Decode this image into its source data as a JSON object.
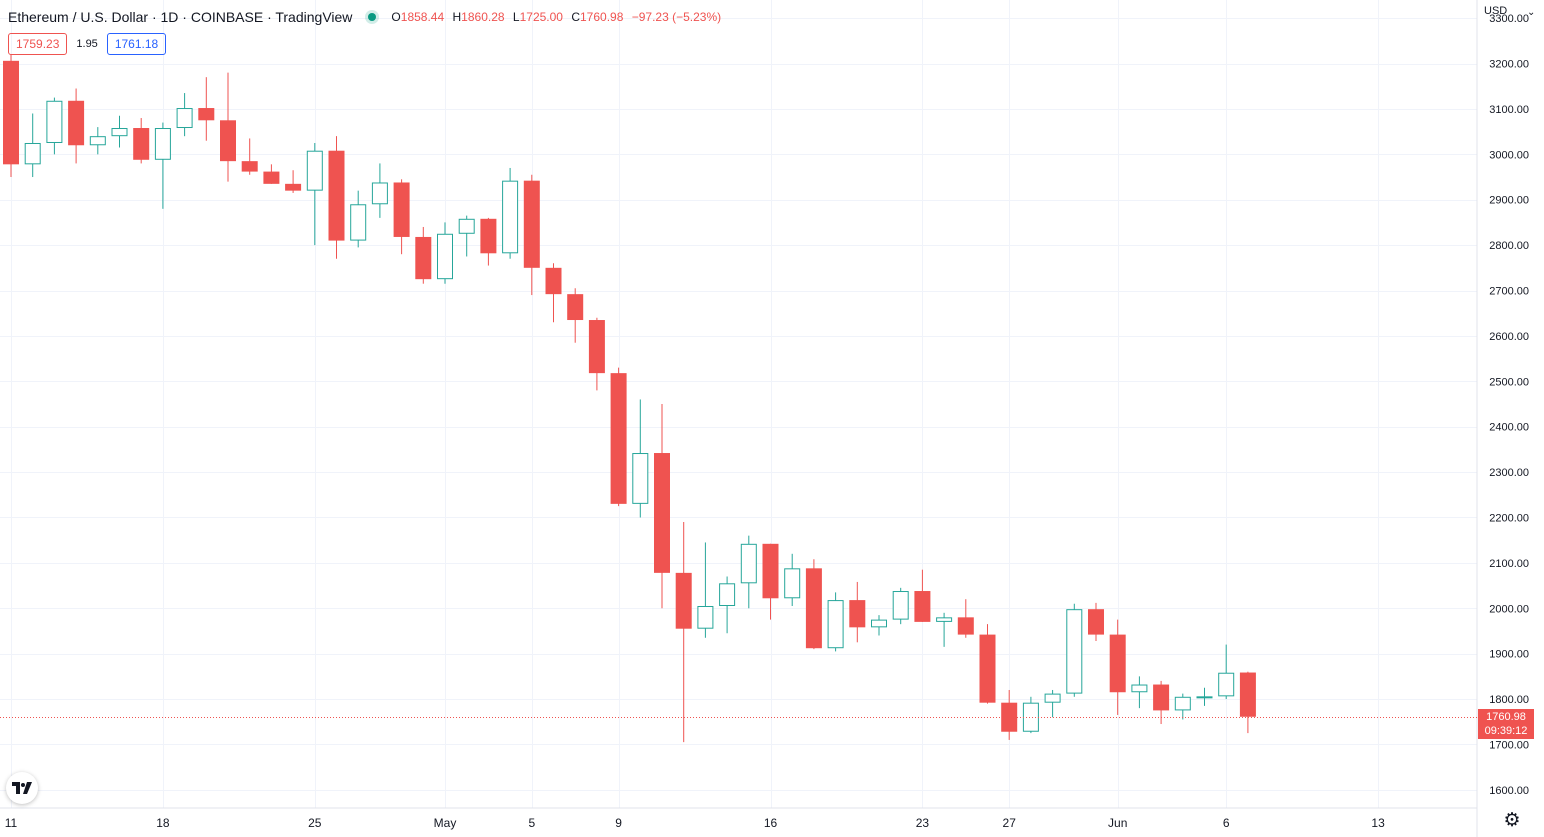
{
  "header": {
    "symbol_title": "Ethereum / U.S. Dollar · 1D · COINBASE · TradingView",
    "open_label": "O",
    "open": "1858.44",
    "high_label": "H",
    "high": "1860.28",
    "low_label": "L",
    "low": "1725.00",
    "close_label": "C",
    "close": "1760.98",
    "change": "−97.23 (−5.23%)"
  },
  "quote": {
    "sell": "1759.23",
    "spread": "1.95",
    "buy": "1761.18"
  },
  "currency": "USD",
  "last_price": {
    "value": "1760.98",
    "countdown": "09:39:12"
  },
  "colors": {
    "up": "#26a69a",
    "down": "#ef5350",
    "grid": "#f0f3fa",
    "axis_text": "#131722"
  },
  "icons": {
    "logo": "tradingview-logo-icon",
    "settings": "gear-icon",
    "currency_menu": "chevron-down-icon"
  },
  "chart_data": {
    "type": "candlestick",
    "ylim": [
      1560,
      3340
    ],
    "y_ticks": [
      1600,
      1700,
      1800,
      1900,
      2000,
      2100,
      2200,
      2300,
      2400,
      2500,
      2600,
      2700,
      2800,
      2900,
      3000,
      3100,
      3200,
      3300
    ],
    "y_tick_labels": [
      "1600.00",
      "1700.00",
      "1800.00",
      "1900.00",
      "2000.00",
      "2100.00",
      "2200.00",
      "2300.00",
      "2400.00",
      "2500.00",
      "2600.00",
      "2700.00",
      "2800.00",
      "2900.00",
      "3000.00",
      "3100.00",
      "3200.00",
      "3300.00"
    ],
    "x_ticks": [
      {
        "date": "2022-04-11",
        "label": "11"
      },
      {
        "date": "2022-04-18",
        "label": "18"
      },
      {
        "date": "2022-04-25",
        "label": "25"
      },
      {
        "date": "2022-05-01",
        "label": "May"
      },
      {
        "date": "2022-05-05",
        "label": "5"
      },
      {
        "date": "2022-05-09",
        "label": "9"
      },
      {
        "date": "2022-05-16",
        "label": "16"
      },
      {
        "date": "2022-05-23",
        "label": "23"
      },
      {
        "date": "2022-05-27",
        "label": "27"
      },
      {
        "date": "2022-06-01",
        "label": "Jun"
      },
      {
        "date": "2022-06-06",
        "label": "6"
      },
      {
        "date": "2022-06-13",
        "label": "13"
      }
    ],
    "x_range": [
      "2022-04-11",
      "2022-06-18"
    ],
    "last_close_line": 1760.98,
    "candles": [
      {
        "date": "2022-04-11",
        "open": 3206,
        "high": 3220,
        "low": 2950,
        "close": 2978
      },
      {
        "date": "2022-04-12",
        "open": 2978,
        "high": 3090,
        "low": 2950,
        "close": 3025
      },
      {
        "date": "2022-04-13",
        "open": 3025,
        "high": 3125,
        "low": 3000,
        "close": 3118
      },
      {
        "date": "2022-04-14",
        "open": 3118,
        "high": 3145,
        "low": 2980,
        "close": 3020
      },
      {
        "date": "2022-04-15",
        "open": 3020,
        "high": 3060,
        "low": 3000,
        "close": 3040
      },
      {
        "date": "2022-04-16",
        "open": 3040,
        "high": 3085,
        "low": 3015,
        "close": 3058
      },
      {
        "date": "2022-04-17",
        "open": 3058,
        "high": 3080,
        "low": 2980,
        "close": 2988
      },
      {
        "date": "2022-04-18",
        "open": 2988,
        "high": 3070,
        "low": 2880,
        "close": 3058
      },
      {
        "date": "2022-04-19",
        "open": 3058,
        "high": 3135,
        "low": 3040,
        "close": 3102
      },
      {
        "date": "2022-04-20",
        "open": 3102,
        "high": 3170,
        "low": 3030,
        "close": 3075
      },
      {
        "date": "2022-04-21",
        "open": 3075,
        "high": 3180,
        "low": 2940,
        "close": 2985
      },
      {
        "date": "2022-04-22",
        "open": 2985,
        "high": 3035,
        "low": 2955,
        "close": 2962
      },
      {
        "date": "2022-04-23",
        "open": 2962,
        "high": 2978,
        "low": 2935,
        "close": 2935
      },
      {
        "date": "2022-04-24",
        "open": 2935,
        "high": 2965,
        "low": 2915,
        "close": 2920
      },
      {
        "date": "2022-04-25",
        "open": 2920,
        "high": 3025,
        "low": 2800,
        "close": 3008
      },
      {
        "date": "2022-04-26",
        "open": 3008,
        "high": 3040,
        "low": 2770,
        "close": 2810
      },
      {
        "date": "2022-04-27",
        "open": 2810,
        "high": 2920,
        "low": 2795,
        "close": 2890
      },
      {
        "date": "2022-04-28",
        "open": 2890,
        "high": 2980,
        "low": 2860,
        "close": 2938
      },
      {
        "date": "2022-04-29",
        "open": 2938,
        "high": 2945,
        "low": 2780,
        "close": 2818
      },
      {
        "date": "2022-04-30",
        "open": 2818,
        "high": 2840,
        "low": 2715,
        "close": 2725
      },
      {
        "date": "2022-05-01",
        "open": 2725,
        "high": 2850,
        "low": 2715,
        "close": 2825
      },
      {
        "date": "2022-05-02",
        "open": 2825,
        "high": 2865,
        "low": 2775,
        "close": 2858
      },
      {
        "date": "2022-05-03",
        "open": 2858,
        "high": 2860,
        "low": 2755,
        "close": 2782
      },
      {
        "date": "2022-05-04",
        "open": 2782,
        "high": 2970,
        "low": 2770,
        "close": 2942
      },
      {
        "date": "2022-05-05",
        "open": 2942,
        "high": 2955,
        "low": 2690,
        "close": 2750
      },
      {
        "date": "2022-05-06",
        "open": 2750,
        "high": 2760,
        "low": 2630,
        "close": 2692
      },
      {
        "date": "2022-05-07",
        "open": 2692,
        "high": 2705,
        "low": 2585,
        "close": 2635
      },
      {
        "date": "2022-05-08",
        "open": 2635,
        "high": 2640,
        "low": 2480,
        "close": 2518
      },
      {
        "date": "2022-05-09",
        "open": 2518,
        "high": 2530,
        "low": 2225,
        "close": 2230
      },
      {
        "date": "2022-05-10",
        "open": 2230,
        "high": 2460,
        "low": 2200,
        "close": 2342
      },
      {
        "date": "2022-05-11",
        "open": 2342,
        "high": 2450,
        "low": 2000,
        "close": 2078
      },
      {
        "date": "2022-05-12",
        "open": 2078,
        "high": 2190,
        "low": 1705,
        "close": 1955
      },
      {
        "date": "2022-05-13",
        "open": 1955,
        "high": 2145,
        "low": 1935,
        "close": 2005
      },
      {
        "date": "2022-05-14",
        "open": 2005,
        "high": 2070,
        "low": 1945,
        "close": 2055
      },
      {
        "date": "2022-05-15",
        "open": 2055,
        "high": 2160,
        "low": 2000,
        "close": 2142
      },
      {
        "date": "2022-05-16",
        "open": 2142,
        "high": 2142,
        "low": 1975,
        "close": 2022
      },
      {
        "date": "2022-05-17",
        "open": 2022,
        "high": 2120,
        "low": 2005,
        "close": 2088
      },
      {
        "date": "2022-05-18",
        "open": 2088,
        "high": 2108,
        "low": 1910,
        "close": 1912
      },
      {
        "date": "2022-05-19",
        "open": 1912,
        "high": 2035,
        "low": 1905,
        "close": 2018
      },
      {
        "date": "2022-05-20",
        "open": 2018,
        "high": 2058,
        "low": 1925,
        "close": 1958
      },
      {
        "date": "2022-05-21",
        "open": 1958,
        "high": 1985,
        "low": 1940,
        "close": 1975
      },
      {
        "date": "2022-05-22",
        "open": 1975,
        "high": 2045,
        "low": 1965,
        "close": 2038
      },
      {
        "date": "2022-05-23",
        "open": 2038,
        "high": 2085,
        "low": 1970,
        "close": 1970
      },
      {
        "date": "2022-05-24",
        "open": 1970,
        "high": 1990,
        "low": 1915,
        "close": 1980
      },
      {
        "date": "2022-05-25",
        "open": 1980,
        "high": 2020,
        "low": 1935,
        "close": 1942
      },
      {
        "date": "2022-05-26",
        "open": 1942,
        "high": 1965,
        "low": 1790,
        "close": 1792
      },
      {
        "date": "2022-05-27",
        "open": 1792,
        "high": 1820,
        "low": 1710,
        "close": 1728
      },
      {
        "date": "2022-05-28",
        "open": 1728,
        "high": 1805,
        "low": 1725,
        "close": 1792
      },
      {
        "date": "2022-05-29",
        "open": 1792,
        "high": 1820,
        "low": 1760,
        "close": 1812
      },
      {
        "date": "2022-05-30",
        "open": 1812,
        "high": 2010,
        "low": 1805,
        "close": 1998
      },
      {
        "date": "2022-05-31",
        "open": 1998,
        "high": 2012,
        "low": 1928,
        "close": 1942
      },
      {
        "date": "2022-06-01",
        "open": 1942,
        "high": 1975,
        "low": 1765,
        "close": 1815
      },
      {
        "date": "2022-06-02",
        "open": 1815,
        "high": 1850,
        "low": 1780,
        "close": 1832
      },
      {
        "date": "2022-06-03",
        "open": 1832,
        "high": 1840,
        "low": 1745,
        "close": 1775
      },
      {
        "date": "2022-06-04",
        "open": 1775,
        "high": 1812,
        "low": 1755,
        "close": 1805
      },
      {
        "date": "2022-06-05",
        "open": 1805,
        "high": 1825,
        "low": 1785,
        "close": 1806
      },
      {
        "date": "2022-06-06",
        "open": 1806,
        "high": 1920,
        "low": 1800,
        "close": 1858
      },
      {
        "date": "2022-06-07",
        "open": 1858.44,
        "high": 1860.28,
        "low": 1725,
        "close": 1760.98
      }
    ]
  }
}
